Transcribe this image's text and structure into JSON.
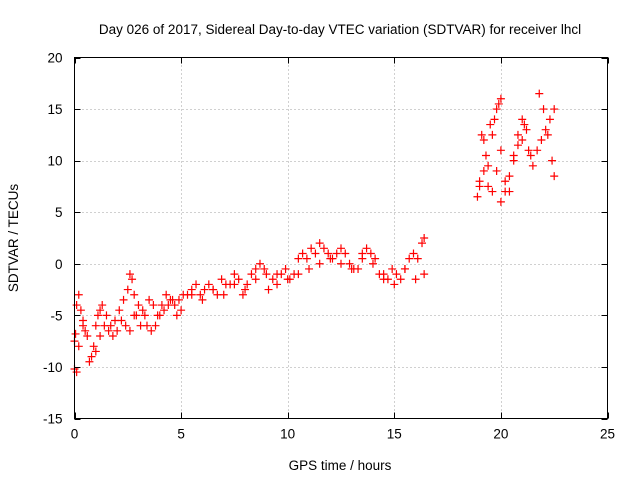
{
  "chart_data": {
    "type": "scatter",
    "title": "Day 026 of 2017, Sidereal Day-to-day VTEC variation (SDTVAR) for receiver lhcl",
    "xlabel": "GPS time / hours",
    "ylabel": "SDTVAR / TECUs",
    "xlim": [
      0,
      25
    ],
    "ylim": [
      -15,
      20
    ],
    "xticks": [
      "0",
      "5",
      "10",
      "15",
      "20",
      "25"
    ],
    "yticks": [
      "-15",
      "-10",
      "-5",
      "0",
      "5",
      "10",
      "15",
      "20"
    ],
    "grid": true,
    "marker": "plus",
    "color": "#ff0000",
    "series": [
      {
        "x": [
          0.0,
          0.05,
          0.1,
          0.2,
          0.3,
          0.4,
          0.5,
          0.7,
          0.9,
          1.0,
          1.1,
          1.2,
          1.3,
          1.5,
          1.7,
          1.9,
          2.1,
          2.3,
          2.5,
          2.6,
          2.7,
          2.8,
          2.9,
          3.1,
          3.3,
          3.5,
          3.7,
          3.9,
          4.1,
          4.3,
          4.5,
          4.7,
          4.9,
          5.1,
          5.3,
          5.5,
          5.7,
          5.9,
          6.1,
          6.3,
          6.5,
          6.7,
          6.9,
          7.1,
          7.3,
          7.5,
          7.7,
          7.9,
          8.1,
          8.3,
          8.5,
          8.7,
          8.9,
          9.1,
          9.3,
          9.5,
          9.7,
          9.9,
          10.1,
          10.3,
          10.5,
          10.7,
          10.9,
          11.1,
          11.3,
          11.5,
          11.7,
          11.9,
          12.1,
          12.3,
          12.5,
          12.7,
          12.9,
          13.1,
          13.3,
          13.5,
          13.7,
          13.9,
          14.1,
          14.3,
          14.5,
          14.7,
          14.9,
          15.1,
          15.3,
          15.5,
          15.7,
          15.9,
          16.1,
          16.3,
          16.4
        ],
        "y": [
          -7.5,
          -6.8,
          -4.0,
          -3.0,
          -4.5,
          -5.5,
          -6.5,
          -9.5,
          -8.0,
          -6.0,
          -5.0,
          -4.5,
          -4.0,
          -5.0,
          -6.0,
          -5.5,
          -4.5,
          -3.5,
          -2.5,
          -1.0,
          -1.5,
          -3.0,
          -5.0,
          -6.0,
          -5.0,
          -3.5,
          -4.0,
          -5.0,
          -4.0,
          -3.0,
          -3.5,
          -4.0,
          -3.5,
          -3.0,
          -3.0,
          -2.5,
          -2.0,
          -3.0,
          -2.5,
          -2.0,
          -2.5,
          -3.0,
          -1.5,
          -2.0,
          -2.0,
          -1.0,
          -1.5,
          -3.0,
          -2.0,
          -1.0,
          -0.5,
          0.0,
          -0.5,
          -2.5,
          -1.5,
          -1.0,
          -1.0,
          -0.5,
          -1.5,
          -1.0,
          0.5,
          1.0,
          0.5,
          1.5,
          1.0,
          2.0,
          1.5,
          1.0,
          0.5,
          1.0,
          1.5,
          1.0,
          0.0,
          -0.5,
          -0.5,
          1.0,
          1.5,
          1.0,
          0.5,
          -1.0,
          -1.5,
          -1.5,
          -0.5,
          -1.0,
          -1.5,
          -0.5,
          0.5,
          1.0,
          0.5,
          2.0,
          2.5
        ]
      },
      {
        "x": [
          0.0,
          0.1,
          0.2,
          0.4,
          0.6,
          0.8,
          1.0,
          1.2,
          1.4,
          1.6,
          1.8,
          2.0,
          2.2,
          2.4,
          2.6,
          2.8,
          3.0,
          3.2,
          3.4,
          3.6,
          3.8,
          4.0,
          4.2,
          4.4,
          4.6,
          4.8,
          5.0,
          5.5,
          6.0,
          6.5,
          7.0,
          7.5,
          8.0,
          8.5,
          9.0,
          9.5,
          10.0,
          10.5,
          11.0,
          11.5,
          12.0,
          12.5,
          13.0,
          13.5,
          14.0,
          14.5,
          15.0,
          15.5,
          16.0,
          16.4
        ],
        "y": [
          -10.2,
          -10.5,
          -8.0,
          -6.0,
          -7.0,
          -9.0,
          -8.5,
          -7.0,
          -6.0,
          -6.5,
          -7.0,
          -6.5,
          -5.5,
          -6.0,
          -6.5,
          -5.0,
          -4.0,
          -4.5,
          -6.0,
          -6.5,
          -6.0,
          -5.0,
          -4.5,
          -4.0,
          -3.5,
          -5.0,
          -4.5,
          -3.0,
          -3.5,
          -2.5,
          -3.0,
          -2.0,
          -2.5,
          -1.5,
          -1.0,
          -2.0,
          -1.5,
          -1.0,
          -0.5,
          0.0,
          0.5,
          0.0,
          -0.5,
          0.5,
          0.0,
          -1.0,
          -2.0,
          -0.5,
          -1.5,
          -1.0
        ]
      },
      {
        "x": [
          18.9,
          19.0,
          19.1,
          19.2,
          19.3,
          19.4,
          19.5,
          19.6,
          19.7,
          19.8,
          19.9,
          20.0,
          19.0,
          19.2,
          19.4,
          19.6,
          19.8,
          20.0,
          20.2,
          20.4,
          20.6,
          20.8,
          21.0,
          21.2,
          21.4,
          20.0,
          20.2,
          20.4,
          20.6,
          20.8,
          21.0,
          21.1,
          21.3,
          21.5,
          21.7,
          21.9,
          22.1,
          22.3,
          22.5,
          21.8,
          22.0,
          22.2,
          22.4,
          22.5
        ],
        "y": [
          6.5,
          7.5,
          12.5,
          12.0,
          10.5,
          9.5,
          13.5,
          12.5,
          14.0,
          15.0,
          15.5,
          16.0,
          8.0,
          9.0,
          7.5,
          7.0,
          9.0,
          11.0,
          8.0,
          7.0,
          10.5,
          12.5,
          14.0,
          13.0,
          10.5,
          6.0,
          7.0,
          8.5,
          10.0,
          11.5,
          12.0,
          13.5,
          11.0,
          9.5,
          11.0,
          12.0,
          13.0,
          14.0,
          15.0,
          16.5,
          15.0,
          12.5,
          10.0,
          8.5
        ]
      }
    ]
  }
}
